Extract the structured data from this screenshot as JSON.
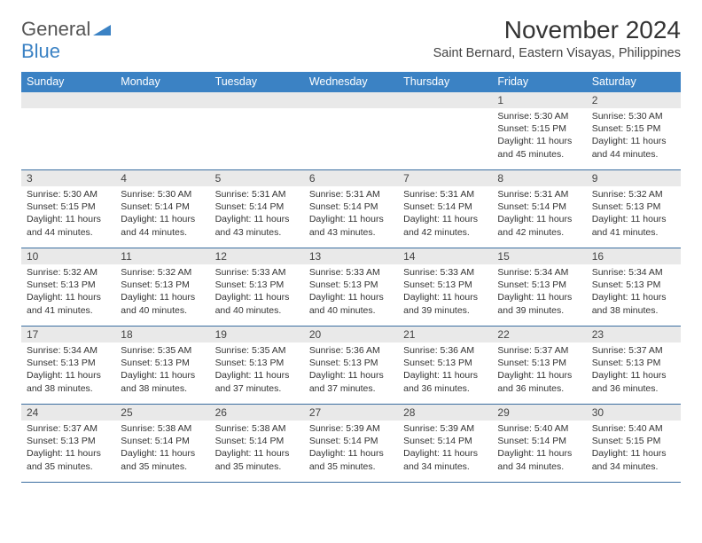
{
  "brand": {
    "part1": "General",
    "part2": "Blue",
    "logo_color": "#3b82c4"
  },
  "header": {
    "month_title": "November 2024",
    "location": "Saint Bernard, Eastern Visayas, Philippines"
  },
  "styling": {
    "header_bg": "#3b82c4",
    "header_text": "#ffffff",
    "daynum_bg": "#e9e9e9",
    "cell_border": "#3b6ea0",
    "body_bg": "#ffffff",
    "title_fontsize": 28,
    "dayheader_fontsize": 12.5,
    "cell_fontsize": 10.5
  },
  "weekdays": [
    "Sunday",
    "Monday",
    "Tuesday",
    "Wednesday",
    "Thursday",
    "Friday",
    "Saturday"
  ],
  "weeks": [
    [
      null,
      null,
      null,
      null,
      null,
      {
        "n": "1",
        "sunrise": "Sunrise: 5:30 AM",
        "sunset": "Sunset: 5:15 PM",
        "daylight": "Daylight: 11 hours and 45 minutes."
      },
      {
        "n": "2",
        "sunrise": "Sunrise: 5:30 AM",
        "sunset": "Sunset: 5:15 PM",
        "daylight": "Daylight: 11 hours and 44 minutes."
      }
    ],
    [
      {
        "n": "3",
        "sunrise": "Sunrise: 5:30 AM",
        "sunset": "Sunset: 5:15 PM",
        "daylight": "Daylight: 11 hours and 44 minutes."
      },
      {
        "n": "4",
        "sunrise": "Sunrise: 5:30 AM",
        "sunset": "Sunset: 5:14 PM",
        "daylight": "Daylight: 11 hours and 44 minutes."
      },
      {
        "n": "5",
        "sunrise": "Sunrise: 5:31 AM",
        "sunset": "Sunset: 5:14 PM",
        "daylight": "Daylight: 11 hours and 43 minutes."
      },
      {
        "n": "6",
        "sunrise": "Sunrise: 5:31 AM",
        "sunset": "Sunset: 5:14 PM",
        "daylight": "Daylight: 11 hours and 43 minutes."
      },
      {
        "n": "7",
        "sunrise": "Sunrise: 5:31 AM",
        "sunset": "Sunset: 5:14 PM",
        "daylight": "Daylight: 11 hours and 42 minutes."
      },
      {
        "n": "8",
        "sunrise": "Sunrise: 5:31 AM",
        "sunset": "Sunset: 5:14 PM",
        "daylight": "Daylight: 11 hours and 42 minutes."
      },
      {
        "n": "9",
        "sunrise": "Sunrise: 5:32 AM",
        "sunset": "Sunset: 5:13 PM",
        "daylight": "Daylight: 11 hours and 41 minutes."
      }
    ],
    [
      {
        "n": "10",
        "sunrise": "Sunrise: 5:32 AM",
        "sunset": "Sunset: 5:13 PM",
        "daylight": "Daylight: 11 hours and 41 minutes."
      },
      {
        "n": "11",
        "sunrise": "Sunrise: 5:32 AM",
        "sunset": "Sunset: 5:13 PM",
        "daylight": "Daylight: 11 hours and 40 minutes."
      },
      {
        "n": "12",
        "sunrise": "Sunrise: 5:33 AM",
        "sunset": "Sunset: 5:13 PM",
        "daylight": "Daylight: 11 hours and 40 minutes."
      },
      {
        "n": "13",
        "sunrise": "Sunrise: 5:33 AM",
        "sunset": "Sunset: 5:13 PM",
        "daylight": "Daylight: 11 hours and 40 minutes."
      },
      {
        "n": "14",
        "sunrise": "Sunrise: 5:33 AM",
        "sunset": "Sunset: 5:13 PM",
        "daylight": "Daylight: 11 hours and 39 minutes."
      },
      {
        "n": "15",
        "sunrise": "Sunrise: 5:34 AM",
        "sunset": "Sunset: 5:13 PM",
        "daylight": "Daylight: 11 hours and 39 minutes."
      },
      {
        "n": "16",
        "sunrise": "Sunrise: 5:34 AM",
        "sunset": "Sunset: 5:13 PM",
        "daylight": "Daylight: 11 hours and 38 minutes."
      }
    ],
    [
      {
        "n": "17",
        "sunrise": "Sunrise: 5:34 AM",
        "sunset": "Sunset: 5:13 PM",
        "daylight": "Daylight: 11 hours and 38 minutes."
      },
      {
        "n": "18",
        "sunrise": "Sunrise: 5:35 AM",
        "sunset": "Sunset: 5:13 PM",
        "daylight": "Daylight: 11 hours and 38 minutes."
      },
      {
        "n": "19",
        "sunrise": "Sunrise: 5:35 AM",
        "sunset": "Sunset: 5:13 PM",
        "daylight": "Daylight: 11 hours and 37 minutes."
      },
      {
        "n": "20",
        "sunrise": "Sunrise: 5:36 AM",
        "sunset": "Sunset: 5:13 PM",
        "daylight": "Daylight: 11 hours and 37 minutes."
      },
      {
        "n": "21",
        "sunrise": "Sunrise: 5:36 AM",
        "sunset": "Sunset: 5:13 PM",
        "daylight": "Daylight: 11 hours and 36 minutes."
      },
      {
        "n": "22",
        "sunrise": "Sunrise: 5:37 AM",
        "sunset": "Sunset: 5:13 PM",
        "daylight": "Daylight: 11 hours and 36 minutes."
      },
      {
        "n": "23",
        "sunrise": "Sunrise: 5:37 AM",
        "sunset": "Sunset: 5:13 PM",
        "daylight": "Daylight: 11 hours and 36 minutes."
      }
    ],
    [
      {
        "n": "24",
        "sunrise": "Sunrise: 5:37 AM",
        "sunset": "Sunset: 5:13 PM",
        "daylight": "Daylight: 11 hours and 35 minutes."
      },
      {
        "n": "25",
        "sunrise": "Sunrise: 5:38 AM",
        "sunset": "Sunset: 5:14 PM",
        "daylight": "Daylight: 11 hours and 35 minutes."
      },
      {
        "n": "26",
        "sunrise": "Sunrise: 5:38 AM",
        "sunset": "Sunset: 5:14 PM",
        "daylight": "Daylight: 11 hours and 35 minutes."
      },
      {
        "n": "27",
        "sunrise": "Sunrise: 5:39 AM",
        "sunset": "Sunset: 5:14 PM",
        "daylight": "Daylight: 11 hours and 35 minutes."
      },
      {
        "n": "28",
        "sunrise": "Sunrise: 5:39 AM",
        "sunset": "Sunset: 5:14 PM",
        "daylight": "Daylight: 11 hours and 34 minutes."
      },
      {
        "n": "29",
        "sunrise": "Sunrise: 5:40 AM",
        "sunset": "Sunset: 5:14 PM",
        "daylight": "Daylight: 11 hours and 34 minutes."
      },
      {
        "n": "30",
        "sunrise": "Sunrise: 5:40 AM",
        "sunset": "Sunset: 5:15 PM",
        "daylight": "Daylight: 11 hours and 34 minutes."
      }
    ]
  ]
}
